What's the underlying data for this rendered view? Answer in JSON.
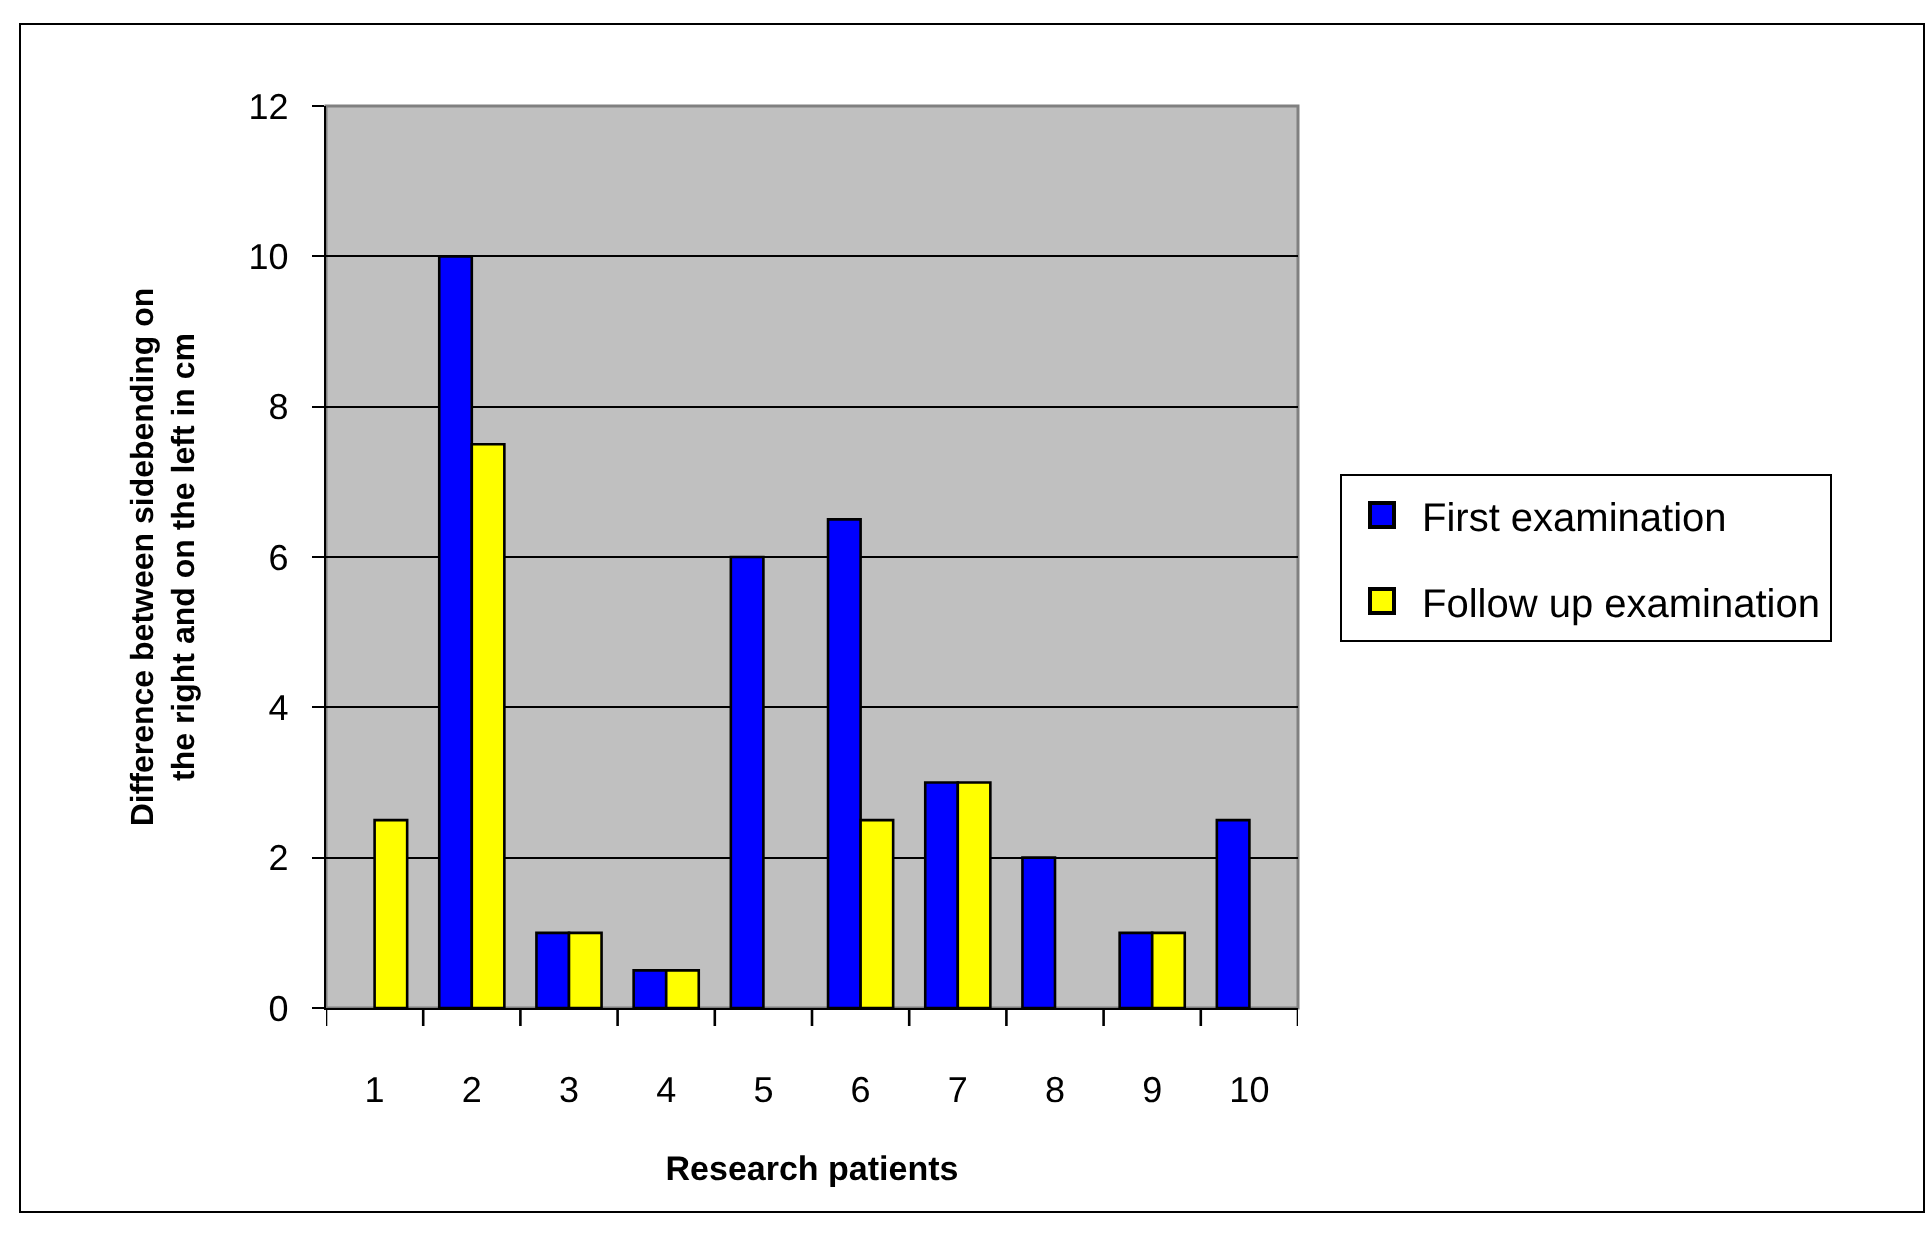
{
  "chart_data": {
    "type": "bar",
    "xlabel": "Research patients",
    "ylabel": "Difference between sidebending on\nthe right and on the left in cm",
    "categories": [
      "1",
      "2",
      "3",
      "4",
      "5",
      "6",
      "7",
      "8",
      "9",
      "10"
    ],
    "series": [
      {
        "name": "First examination",
        "color": "#0000ff",
        "values": [
          null,
          10,
          1,
          0.5,
          6,
          6.5,
          3,
          2,
          1,
          2.5
        ]
      },
      {
        "name": "Follow up examination",
        "color": "#ffff00",
        "values": [
          2.5,
          7.5,
          1,
          0.5,
          null,
          2.5,
          3,
          null,
          1,
          null
        ]
      }
    ],
    "ylim": [
      0,
      12
    ],
    "yticks": [
      0,
      2,
      4,
      6,
      8,
      10,
      12
    ],
    "grid": "y",
    "legend": "right"
  }
}
